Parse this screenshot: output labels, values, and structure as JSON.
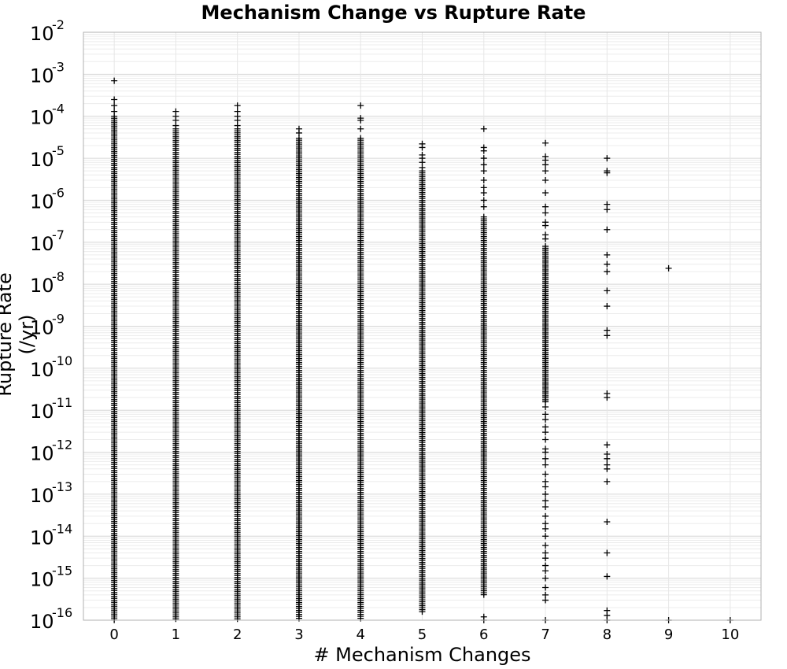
{
  "chart_data": {
    "type": "scatter",
    "title": "Mechanism Change vs Rupture Rate",
    "xlabel": "# Mechanism Changes",
    "ylabel": "Rupture Rate (/yr)",
    "xlim": [
      -0.5,
      10.5
    ],
    "ylim": [
      1e-16,
      0.01
    ],
    "yscale": "log",
    "grid": true,
    "marker": "plus",
    "color": "#000000",
    "x_ticks": [
      "0",
      "1",
      "2",
      "3",
      "4",
      "5",
      "6",
      "7",
      "8",
      "9",
      "10"
    ],
    "y_ticks": [
      {
        "base": "10",
        "exp": "-2"
      },
      {
        "base": "10",
        "exp": "-3"
      },
      {
        "base": "10",
        "exp": "-4"
      },
      {
        "base": "10",
        "exp": "-5"
      },
      {
        "base": "10",
        "exp": "-6"
      },
      {
        "base": "10",
        "exp": "-7"
      },
      {
        "base": "10",
        "exp": "-8"
      },
      {
        "base": "10",
        "exp": "-9"
      },
      {
        "base": "10",
        "exp": "-10"
      },
      {
        "base": "10",
        "exp": "-11"
      },
      {
        "base": "10",
        "exp": "-12"
      },
      {
        "base": "10",
        "exp": "-13"
      },
      {
        "base": "10",
        "exp": "-14"
      },
      {
        "base": "10",
        "exp": "-15"
      },
      {
        "base": "10",
        "exp": "-16"
      }
    ],
    "columns": [
      {
        "x": 0,
        "band": [
          1e-16,
          0.0001
        ],
        "points": [
          0.0007,
          0.00025,
          0.00018,
          0.00013
        ]
      },
      {
        "x": 1,
        "band": [
          1e-16,
          5e-05
        ],
        "points": [
          0.00013,
          0.0001,
          8e-05,
          6e-05
        ]
      },
      {
        "x": 2,
        "band": [
          1e-16,
          5e-05
        ],
        "points": [
          0.00018,
          0.00013,
          0.0001,
          8e-05,
          6e-05
        ]
      },
      {
        "x": 3,
        "band": [
          1e-16,
          3e-05
        ],
        "points": [
          5e-05,
          4e-05
        ]
      },
      {
        "x": 4,
        "band": [
          1e-16,
          3e-05
        ],
        "points": [
          0.00018,
          9e-05,
          8e-05,
          5e-05
        ]
      },
      {
        "x": 5,
        "band": [
          1.5e-16,
          5e-06
        ],
        "points": [
          2.2e-05,
          1.8e-05,
          1.2e-05,
          1e-05,
          8e-06,
          6e-06
        ]
      },
      {
        "x": 6,
        "band": [
          4e-16,
          4e-07
        ],
        "points": [
          5e-05,
          1.8e-05,
          1.5e-05,
          1e-05,
          7e-06,
          5e-06,
          3e-06,
          2e-06,
          1.5e-06,
          1e-06,
          7e-07,
          1e-16,
          1.2e-16
        ]
      },
      {
        "x": 7,
        "band": [
          1.5e-11,
          8e-08
        ],
        "points": [
          2.3e-05,
          1.1e-05,
          9e-06,
          7e-06,
          5e-06,
          3e-06,
          1.5e-06,
          7e-07,
          5e-07,
          3e-07,
          2.5e-07,
          1.5e-07,
          1.2e-07,
          1.2e-11,
          8e-12,
          6e-12,
          4e-12,
          3e-12,
          2e-12,
          1.2e-12,
          1e-12,
          7e-13,
          5e-13,
          3e-13,
          2e-13,
          1.5e-13,
          1e-13,
          7e-14,
          5e-14,
          3e-14,
          2e-14,
          1.5e-14,
          1e-14,
          6e-15,
          4e-15,
          3e-15,
          2e-15,
          1.5e-15,
          1e-15,
          6e-16,
          4e-16,
          3e-16,
          1e-16
        ]
      },
      {
        "x": 8,
        "band": null,
        "points": [
          1e-05,
          5e-06,
          4.5e-06,
          8e-07,
          6e-07,
          2e-07,
          5e-08,
          3e-08,
          2e-08,
          7e-09,
          3e-09,
          8e-10,
          6e-10,
          2.5e-11,
          2e-11,
          1.5e-12,
          9e-13,
          7e-13,
          5e-13,
          4e-13,
          2e-13,
          2.2e-14,
          4e-15,
          1.1e-15,
          1.7e-16,
          1.3e-16,
          1e-16
        ]
      },
      {
        "x": 9,
        "band": null,
        "points": [
          2.4e-08,
          1e-16
        ]
      },
      {
        "x": 10,
        "band": null,
        "points": [
          1e-16
        ]
      }
    ]
  }
}
